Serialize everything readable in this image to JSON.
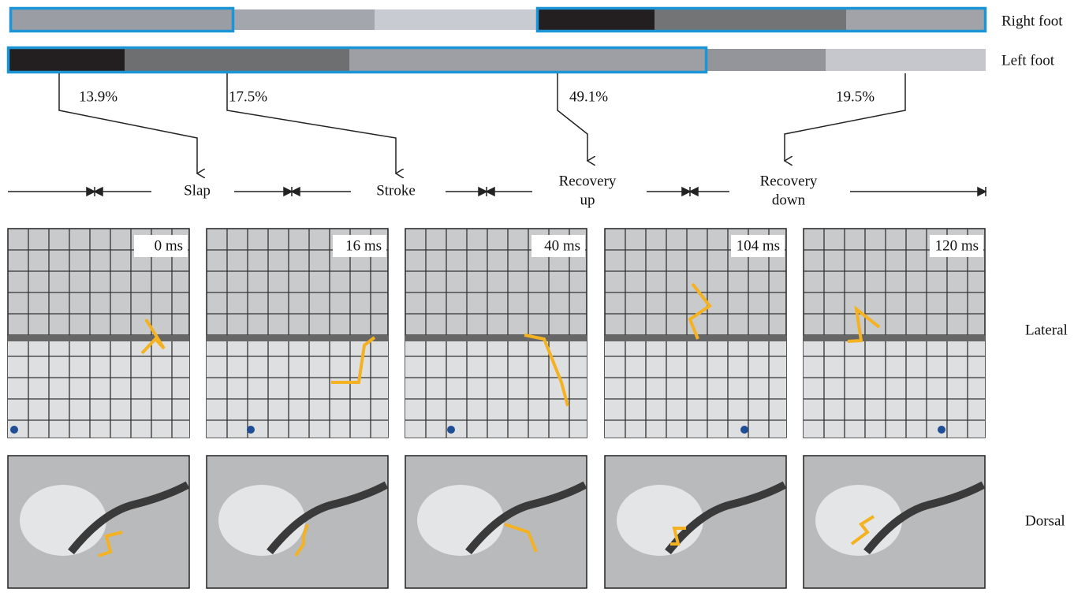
{
  "feet": [
    "Right foot",
    "Left foot"
  ],
  "percentages": [
    "13.9%",
    "17.5%",
    "49.1%",
    "19.5%"
  ],
  "phases": [
    [
      "Slap"
    ],
    [
      "Stroke"
    ],
    [
      "Recovery",
      "up"
    ],
    [
      "Recovery",
      "down"
    ]
  ],
  "frames": [
    "0 ms",
    "16 ms",
    "40 ms",
    "104 ms",
    "120 ms"
  ],
  "views": [
    "Lateral",
    "Dorsal"
  ]
}
